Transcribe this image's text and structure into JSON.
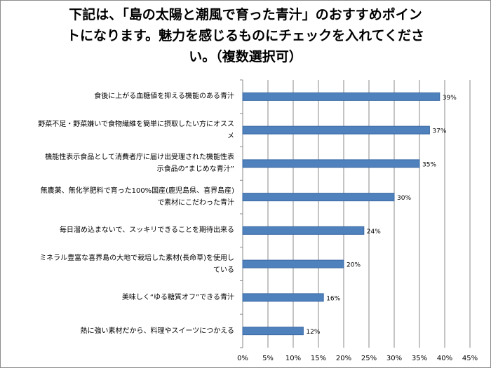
{
  "chart_data": {
    "type": "bar",
    "orientation": "horizontal",
    "title_lines": [
      "下記は、「島の太陽と潮風で育った青汁」のおすすめポイン",
      "トになります。魅力を感じるものにチェックを入れてくださ",
      "い。（複数選択可）"
    ],
    "categories": [
      "食後に上がる血糖値を抑える機能のある青汁",
      "野菜不足・野菜嫌いで食物繊維を簡単に摂取したい方にオススメ",
      "機能性表示食品として消費者庁に届け出受理された機能性表示食品の“まじめな青汁”",
      "無農薬、無化学肥料で育った100%国産(鹿児島県、喜界島産)で素材にこだわった青汁",
      "毎日溜め込まないで、スッキリできることを期待出来る",
      "ミネラル豊富な喜界島の大地で栽培した素材(長命草)を使用している",
      "美味しく“ゆる糖質オフ”できる青汁",
      "熱に強い素材だから、料理やスイーツにつかえる"
    ],
    "category_lines": [
      [
        "食後に上がる血糖値を抑える機能のある青汁"
      ],
      [
        "野菜不足・野菜嫌いで食物繊維を簡単に摂取したい方にオスス",
        "メ"
      ],
      [
        "機能性表示食品として消費者庁に届け出受理された機能性表",
        "示食品の“まじめな青汁”"
      ],
      [
        "無農薬、無化学肥料で育った100%国産(鹿児島県、喜界島産)",
        "で素材にこだわった青汁"
      ],
      [
        "毎日溜め込まないで、スッキリできることを期待出来る"
      ],
      [
        "ミネラル豊富な喜界島の大地で栽培した素材(長命草)を使用し",
        "ている"
      ],
      [
        "美味しく“ゆる糖質オフ”できる青汁"
      ],
      [
        "熱に強い素材だから、料理やスイーツにつかえる"
      ]
    ],
    "values": [
      39,
      37,
      35,
      30,
      24,
      20,
      16,
      12
    ],
    "data_labels": [
      "39%",
      "37%",
      "35%",
      "30%",
      "24%",
      "20%",
      "16%",
      "12%"
    ],
    "x_ticks": [
      0,
      5,
      10,
      15,
      20,
      25,
      30,
      35,
      40,
      45
    ],
    "x_tick_labels": [
      "0%",
      "5%",
      "10%",
      "15%",
      "20%",
      "25%",
      "30%",
      "35%",
      "40%",
      "45%"
    ],
    "xlim": [
      0,
      45
    ],
    "grid": true,
    "bar_color": "#4f81bd",
    "bar_border_color": "#3a6aa5"
  }
}
